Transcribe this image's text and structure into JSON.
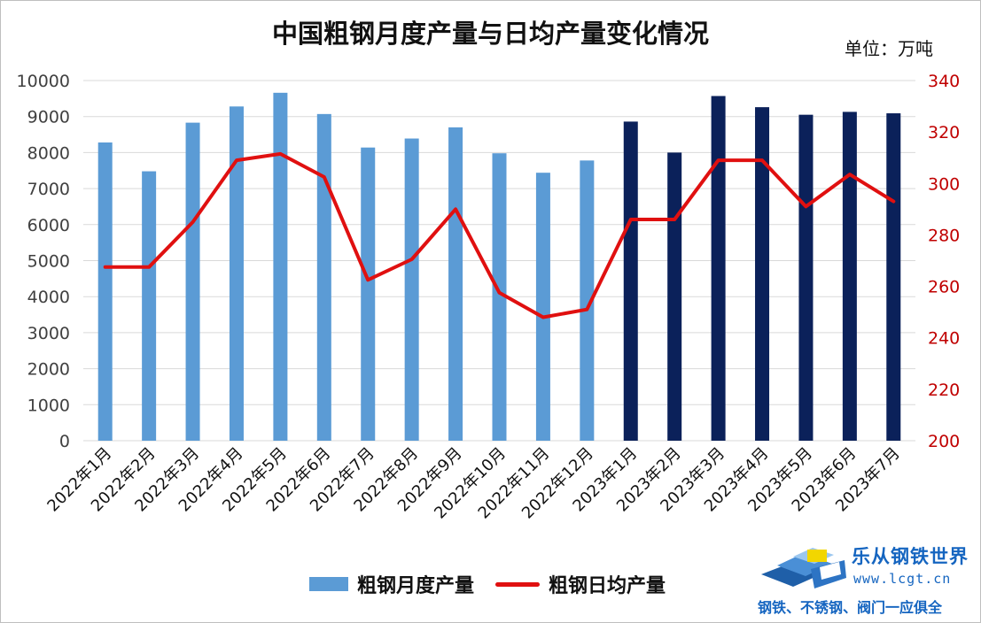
{
  "chart_data": {
    "type": "bar",
    "title": "中国粗钢月度产量与日均产量变化情况",
    "unit_label": "单位：万吨",
    "categories": [
      "2022年1月",
      "2022年2月",
      "2022年3月",
      "2022年4月",
      "2022年5月",
      "2022年6月",
      "2022年7月",
      "2022年8月",
      "2022年9月",
      "2022年10月",
      "2022年11月",
      "2022年12月",
      "2023年1月",
      "2023年2月",
      "2023年3月",
      "2023年4月",
      "2023年5月",
      "2023年6月",
      "2023年7月"
    ],
    "series": [
      {
        "name": "粗钢月度产量",
        "type": "bar",
        "axis": "left",
        "values": [
          8280,
          7480,
          8830,
          9280,
          9660,
          9070,
          8140,
          8390,
          8700,
          7980,
          7440,
          7780,
          8860,
          8000,
          9570,
          9260,
          9050,
          9130,
          9090
        ]
      },
      {
        "name": "粗钢日均产量",
        "type": "line",
        "axis": "right",
        "values": [
          267.5,
          267.5,
          285,
          309,
          311.5,
          302.5,
          262.5,
          270.5,
          290,
          257.5,
          248,
          251,
          286,
          286,
          309,
          309,
          291,
          303.5,
          293
        ]
      }
    ],
    "y_left": {
      "min": 0,
      "max": 10000,
      "ticks": [
        0,
        1000,
        2000,
        3000,
        4000,
        5000,
        6000,
        7000,
        8000,
        9000,
        10000
      ]
    },
    "y_right": {
      "min": 200,
      "max": 340,
      "ticks": [
        200,
        220,
        240,
        260,
        280,
        300,
        320,
        340
      ]
    },
    "grid": true,
    "legend_position": "bottom",
    "colors": {
      "bar_2022": "#5b9bd5",
      "bar_2023": "#0b215a",
      "line": "#e01010",
      "right_axis_text": "#c00000",
      "left_axis_text": "#404040",
      "grid": "#d9d9d9"
    }
  },
  "watermark": {
    "name": "乐从钢铁世界",
    "url": "www.lcgt.cn",
    "slogan": "钢铁、不锈钢、阀门一应俱全"
  }
}
